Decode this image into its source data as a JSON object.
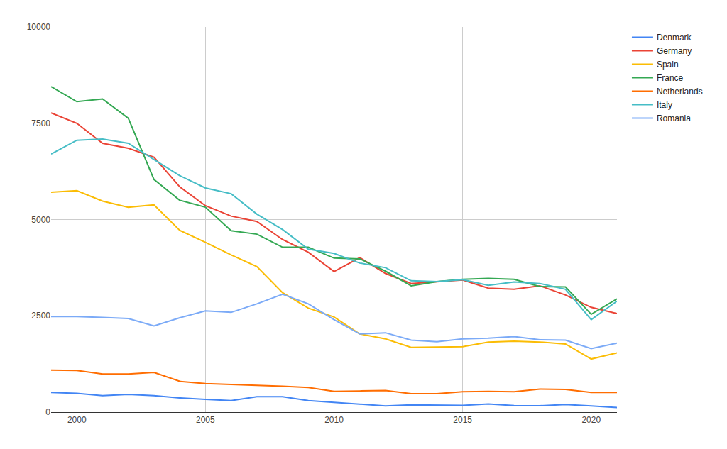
{
  "chart_data": {
    "type": "line",
    "x": [
      1999,
      2000,
      2001,
      2002,
      2003,
      2004,
      2005,
      2006,
      2007,
      2008,
      2009,
      2010,
      2011,
      2012,
      2013,
      2014,
      2015,
      2016,
      2017,
      2018,
      2019,
      2020,
      2021
    ],
    "series": [
      {
        "name": "Denmark",
        "color": "#4285f4",
        "values": [
          510,
          490,
          430,
          460,
          430,
          370,
          330,
          300,
          400,
          400,
          300,
          250,
          210,
          160,
          190,
          180,
          175,
          210,
          170,
          165,
          200,
          160,
          120
        ]
      },
      {
        "name": "Germany",
        "color": "#ea4335",
        "values": [
          7770,
          7500,
          6980,
          6850,
          6620,
          5850,
          5360,
          5090,
          4950,
          4480,
          4150,
          3650,
          4010,
          3600,
          3340,
          3380,
          3430,
          3220,
          3190,
          3280,
          3040,
          2720,
          2560
        ]
      },
      {
        "name": "Spain",
        "color": "#fbbc04",
        "values": [
          5710,
          5750,
          5480,
          5320,
          5380,
          4720,
          4410,
          4080,
          3780,
          3100,
          2700,
          2470,
          2030,
          1900,
          1680,
          1690,
          1700,
          1820,
          1840,
          1820,
          1770,
          1380,
          1540
        ]
      },
      {
        "name": "France",
        "color": "#34a853",
        "values": [
          8450,
          8060,
          8130,
          7630,
          6040,
          5500,
          5320,
          4710,
          4620,
          4280,
          4280,
          4000,
          3980,
          3660,
          3280,
          3390,
          3450,
          3470,
          3450,
          3260,
          3250,
          2540,
          2940
        ]
      },
      {
        "name": "Netherlands",
        "color": "#ff6d01",
        "values": [
          1090,
          1080,
          990,
          990,
          1030,
          800,
          740,
          720,
          700,
          670,
          640,
          540,
          550,
          560,
          480,
          480,
          530,
          540,
          530,
          600,
          590,
          510,
          510
        ]
      },
      {
        "name": "Italy",
        "color": "#46bdc6",
        "values": [
          6700,
          7060,
          7090,
          6980,
          6560,
          6140,
          5820,
          5670,
          5140,
          4740,
          4230,
          4120,
          3870,
          3750,
          3410,
          3390,
          3440,
          3290,
          3380,
          3340,
          3190,
          2400,
          2880
        ]
      },
      {
        "name": "Romania",
        "color": "#7baaf7",
        "values": [
          2480,
          2480,
          2460,
          2430,
          2240,
          2450,
          2630,
          2590,
          2810,
          3060,
          2810,
          2400,
          2030,
          2060,
          1870,
          1830,
          1900,
          1920,
          1960,
          1880,
          1870,
          1650,
          1790
        ]
      }
    ],
    "xlim": [
      1999,
      2021
    ],
    "xticks": [
      2000,
      2005,
      2010,
      2015,
      2020
    ],
    "ylim": [
      0,
      10000
    ],
    "yticks": [
      0,
      2500,
      5000,
      7500,
      10000
    ],
    "grid": true,
    "legend": "right"
  }
}
